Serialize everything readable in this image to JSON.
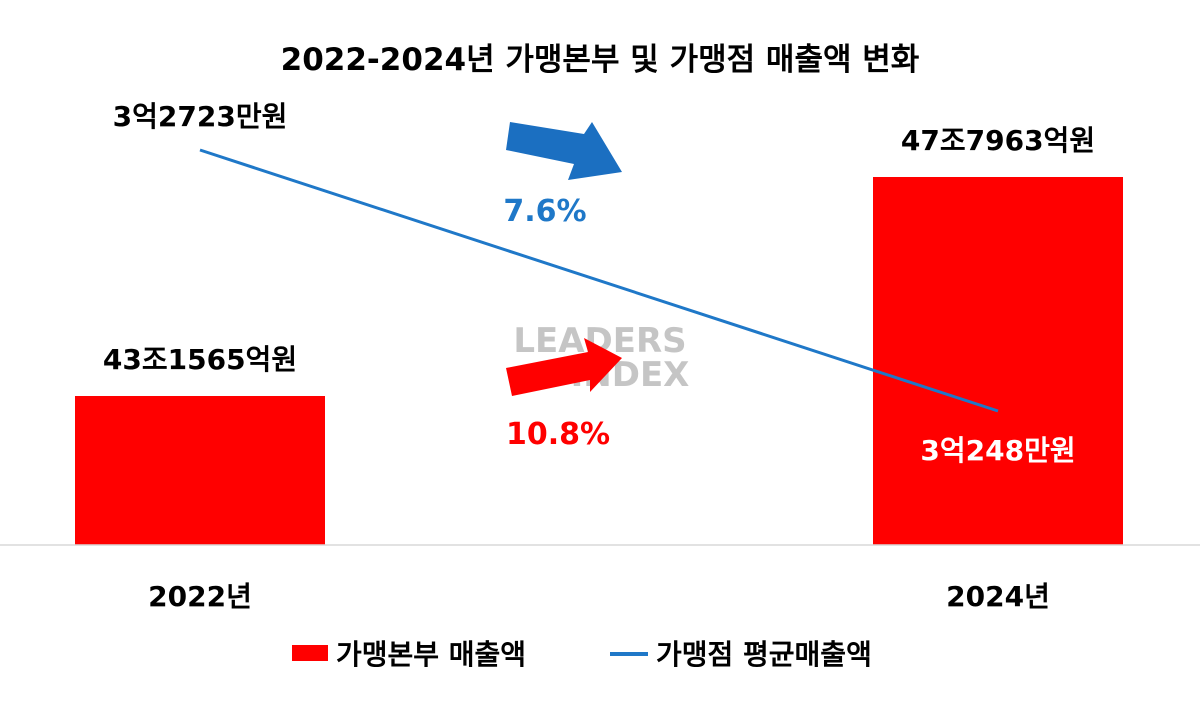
{
  "chart_data": {
    "type": "bar",
    "title": "2022-2024년 가맹본부 및 가맹점 매출액 변화",
    "categories": [
      "2022년",
      "2024년"
    ],
    "xlabel": "",
    "ylabel": "",
    "grid": false,
    "legend_position": "bottom",
    "series": [
      {
        "name": "가맹본부 매출액",
        "type": "bar",
        "color": "#ff0000",
        "values": [
          431565,
          477963
        ],
        "unit": "억원",
        "data_labels": [
          "43조1565억원",
          "47조7963억원"
        ],
        "growth_label": "10.8%"
      },
      {
        "name": "가맹점 평균매출액",
        "type": "line",
        "color": "#1f78c8",
        "values": [
          32723,
          30248
        ],
        "unit": "만원",
        "data_labels": [
          "3억2723만원",
          "3억248만원"
        ],
        "growth_label": "7.6%"
      }
    ]
  },
  "watermark": {
    "line1": "LEADERS",
    "line2": "INDEX"
  }
}
